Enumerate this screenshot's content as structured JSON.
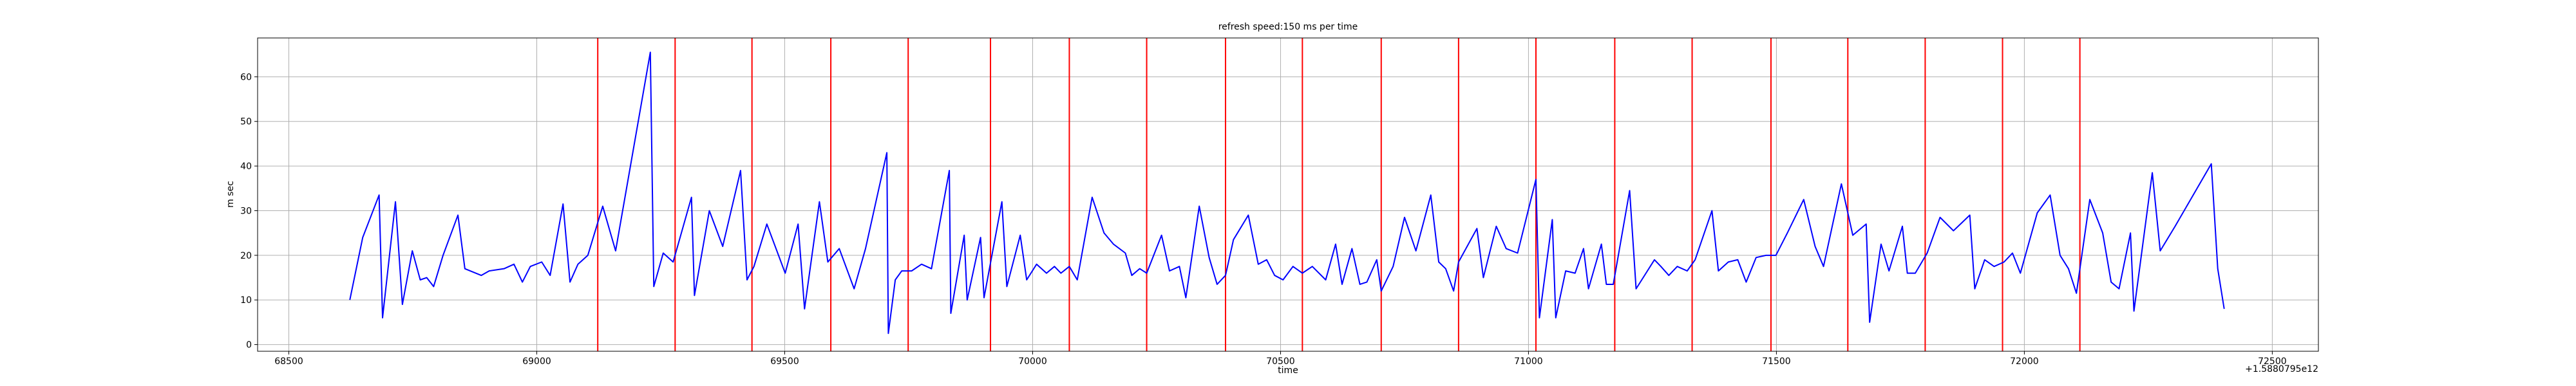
{
  "chart_data": {
    "type": "line",
    "title": "refresh speed:150 ms per time",
    "xlabel": "time",
    "ylabel": "m sec",
    "x_offset_label": "+1.5880795e12",
    "color": "#0000ff",
    "x": [
      68623,
      68649,
      68682,
      68689,
      68715,
      68729,
      68749,
      68765,
      68778,
      68792,
      68811,
      68841,
      68855,
      68888,
      68904,
      68934,
      68954,
      68971,
      68987,
      69010,
      69027,
      69053,
      69067,
      69083,
      69103,
      69133,
      69159,
      69229,
      69236,
      69255,
      69275,
      69312,
      69318,
      69348,
      69375,
      69411,
      69424,
      69438,
      69464,
      69501,
      69527,
      69540,
      69570,
      69587,
      69610,
      69640,
      69663,
      69706,
      69709,
      69723,
      69736,
      69756,
      69776,
      69796,
      69832,
      69835,
      69862,
      69868,
      69895,
      69902,
      69938,
      69948,
      69975,
      69988,
      70008,
      70028,
      70044,
      70057,
      70074,
      70090,
      70120,
      70144,
      70163,
      70187,
      70200,
      70216,
      70230,
      70260,
      70276,
      70296,
      70309,
      70336,
      70356,
      70372,
      70389,
      70405,
      70435,
      70455,
      70472,
      70488,
      70505,
      70525,
      70544,
      70564,
      70591,
      70611,
      70624,
      70644,
      70660,
      70674,
      70694,
      70703,
      70727,
      70750,
      70773,
      70803,
      70819,
      70833,
      70849,
      70859,
      70896,
      70909,
      70935,
      70955,
      70978,
      71015,
      71022,
      71048,
      71055,
      71075,
      71094,
      71111,
      71121,
      71147,
      71157,
      71171,
      71204,
      71217,
      71254,
      71267,
      71283,
      71300,
      71320,
      71336,
      71370,
      71383,
      71403,
      71422,
      71439,
      71459,
      71479,
      71499,
      71522,
      71555,
      71578,
      71595,
      71631,
      71654,
      71681,
      71688,
      71711,
      71727,
      71754,
      71764,
      71780,
      71804,
      71830,
      71857,
      71890,
      71900,
      71920,
      71939,
      71959,
      71976,
      71992,
      72026,
      72052,
      72072,
      72089,
      72105,
      72132,
      72158,
      72175,
      72191,
      72214,
      72221,
      72258,
      72274,
      72304,
      72377,
      72390,
      72403
    ],
    "values": [
      10,
      24,
      33.5,
      6,
      32,
      9,
      21,
      14.5,
      15,
      13,
      20,
      29,
      17,
      15.5,
      16.5,
      17,
      18,
      14,
      17.5,
      18.5,
      15.5,
      31.5,
      14,
      18,
      20,
      31,
      21,
      65.5,
      13,
      20.5,
      18.5,
      33,
      11,
      30,
      22,
      39,
      14.5,
      17.5,
      27,
      16,
      27,
      8,
      32,
      18.5,
      21.5,
      12.5,
      21.5,
      43,
      2.5,
      14.5,
      16.5,
      16.5,
      18,
      17,
      39,
      7,
      24.5,
      10,
      24,
      10.5,
      32,
      13,
      24.5,
      14.5,
      18,
      16,
      17.5,
      16,
      17.5,
      14.5,
      33,
      25,
      22.5,
      20.5,
      15.5,
      17,
      16,
      24.5,
      16.5,
      17.5,
      10.5,
      31,
      19.5,
      13.5,
      15.5,
      23.5,
      29,
      18,
      19,
      15.5,
      14.5,
      17.5,
      16,
      17.5,
      14.5,
      22.5,
      13.5,
      21.5,
      13.5,
      14,
      19,
      12,
      17.5,
      28.5,
      21,
      33.5,
      18.5,
      17,
      12,
      18.5,
      26,
      15,
      26.5,
      21.5,
      20.5,
      37,
      6,
      28,
      6,
      16.5,
      16,
      21.5,
      12.5,
      22.5,
      13.5,
      13.5,
      34.5,
      12.5,
      19,
      17.5,
      15.5,
      17.5,
      16.5,
      19,
      30,
      16.5,
      18.5,
      19,
      14,
      19.5,
      20,
      20,
      25,
      32.5,
      22,
      17.5,
      36,
      24.5,
      27,
      5,
      22.5,
      16.5,
      26.5,
      16,
      16,
      20.5,
      28.5,
      25.5,
      29,
      12.5,
      19,
      17.5,
      18.5,
      20.5,
      16,
      29.5,
      33.5,
      20,
      17,
      11.5,
      32.5,
      25,
      14,
      12.5,
      25,
      7.5,
      38.5,
      21,
      26.5,
      40.5,
      17,
      8
    ],
    "vlines": [
      69123,
      69279,
      69434,
      69593,
      69749,
      69915,
      70074,
      70230,
      70389,
      70544,
      70703,
      70859,
      71015,
      71174,
      71330,
      71489,
      71644,
      71800,
      71956,
      72112
    ],
    "vline_color": "#ff0000",
    "xlim": [
      68437,
      72593
    ],
    "ylim": [
      -1.5,
      68.7
    ],
    "xticks": [
      68500,
      69000,
      69500,
      70000,
      70500,
      71000,
      71500,
      72000,
      72500
    ],
    "yticks": [
      0,
      10,
      20,
      30,
      40,
      50,
      60
    ],
    "grid": true
  }
}
